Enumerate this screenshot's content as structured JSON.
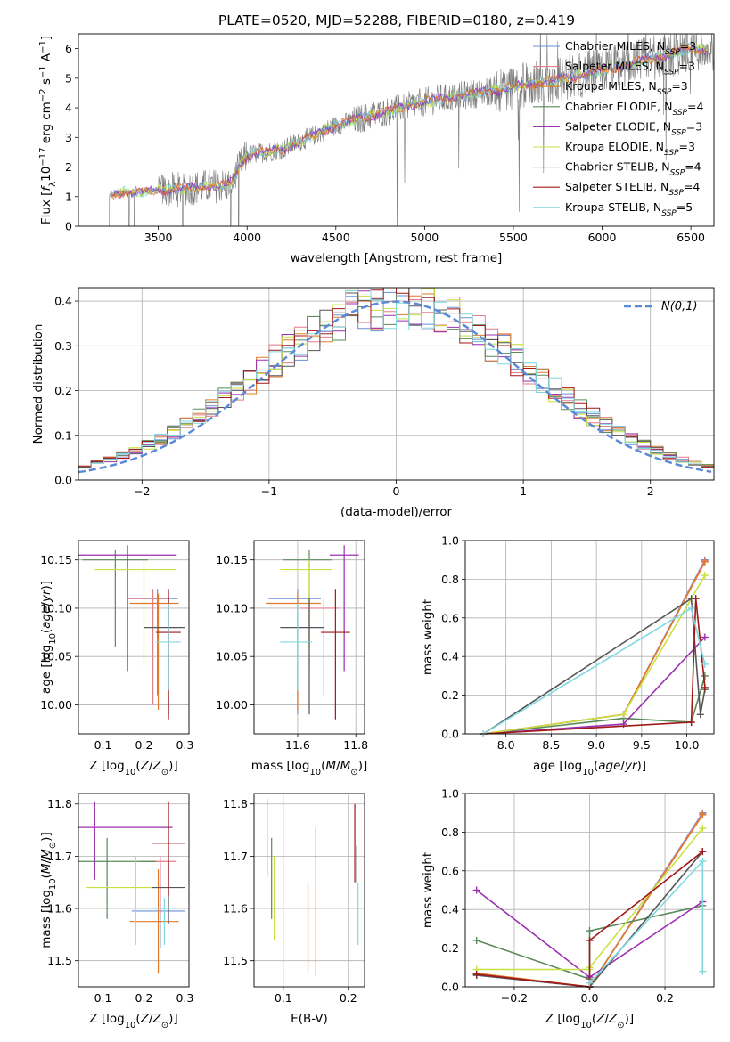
{
  "figure": {
    "title": "PLATE=0520, MJD=52288, FIBERID=0180, z=0.419"
  },
  "colors": {
    "chabrier_miles": "#6b8fd6",
    "salpeter_miles": "#e47c8c",
    "kroupa_miles": "#e07a2a",
    "chabrier_elodie": "#5a8a5a",
    "salpeter_elodie": "#9b30b0",
    "kroupa_elodie": "#c8e040",
    "chabrier_stelib": "#555555",
    "salpeter_stelib": "#a01818",
    "kroupa_stelib": "#7fd8e0",
    "normal_curve": "#5b8ad8",
    "grid": "#b0b0b0"
  },
  "legend_labels": [
    {
      "prefix": "Chabrier MILES, N",
      "sub": "SSP",
      "suffix": "=3",
      "color": "chabrier_miles"
    },
    {
      "prefix": "Salpeter MILES, N",
      "sub": "SSP",
      "suffix": "=3",
      "color": "salpeter_miles"
    },
    {
      "prefix": "Kroupa MILES, N",
      "sub": "SSP",
      "suffix": "=3",
      "color": "kroupa_miles"
    },
    {
      "prefix": "Chabrier ELODIE, N",
      "sub": "SSP",
      "suffix": "=4",
      "color": "chabrier_elodie"
    },
    {
      "prefix": "Salpeter ELODIE, N",
      "sub": "SSP",
      "suffix": "=3",
      "color": "salpeter_elodie"
    },
    {
      "prefix": "Kroupa ELODIE, N",
      "sub": "SSP",
      "suffix": "=3",
      "color": "kroupa_elodie"
    },
    {
      "prefix": "Chabrier STELIB, N",
      "sub": "SSP",
      "suffix": "=4",
      "color": "chabrier_stelib"
    },
    {
      "prefix": "Salpeter STELIB, N",
      "sub": "SSP",
      "suffix": "=4",
      "color": "salpeter_stelib"
    },
    {
      "prefix": "Kroupa STELIB, N",
      "sub": "SSP",
      "suffix": "=5",
      "color": "kroupa_stelib"
    }
  ],
  "chart_data": [
    {
      "id": "spectrum",
      "type": "line",
      "xlabel": "wavelength [Angstrom, rest frame]",
      "ylabel": "Flux [f_λ 10^-17 erg cm^-2 s^-1 A^-1]",
      "xlim": [
        3050,
        6630
      ],
      "ylim": [
        0,
        6.5
      ],
      "xticks": [
        3500,
        4000,
        4500,
        5000,
        5500,
        6000,
        6500
      ],
      "yticks": [
        0,
        1,
        2,
        3,
        4,
        5,
        6
      ],
      "continuum_x": [
        3220,
        3300,
        3500,
        3700,
        3900,
        4000,
        4200,
        4500,
        4800,
        5000,
        5200,
        5500,
        5800,
        6100,
        6500
      ],
      "continuum_y": [
        1.0,
        1.15,
        1.2,
        1.3,
        1.4,
        2.4,
        2.6,
        3.4,
        3.9,
        4.2,
        4.4,
        4.7,
        5.0,
        5.4,
        6.0
      ],
      "grid": false
    },
    {
      "id": "residuals",
      "type": "bar",
      "xlabel": "(data-model)/error",
      "ylabel": "Normed distribution",
      "xlim": [
        -2.5,
        2.5
      ],
      "ylim": [
        0,
        0.43
      ],
      "xticks": [
        -2,
        -1,
        0,
        1,
        2
      ],
      "yticks": [
        0.0,
        0.1,
        0.2,
        0.3,
        0.4
      ],
      "bin_width": 0.1,
      "normal_label": "N(0,1)",
      "grid": true
    },
    {
      "id": "age_vs_z",
      "type": "scatter",
      "xlabel": "Z [log10(Z/Z⊙)]",
      "ylabel": "age  [log10(age/yr)]",
      "xlim": [
        0.04,
        0.31
      ],
      "ylim": [
        9.97,
        10.17
      ],
      "xticks": [
        0.1,
        0.2,
        0.3
      ],
      "yticks": [
        10.0,
        10.05,
        10.1,
        10.15
      ],
      "points": [
        {
          "c": "chabrier_miles",
          "x": 0.233,
          "y": 10.11,
          "xerr": [
            0.07,
            0.05
          ],
          "yerr": [
            0.1,
            0.01
          ]
        },
        {
          "c": "salpeter_miles",
          "x": 0.222,
          "y": 10.11,
          "xerr": [
            0.06,
            0.04
          ],
          "yerr": [
            0.11,
            0.01
          ]
        },
        {
          "c": "kroupa_miles",
          "x": 0.235,
          "y": 10.105,
          "xerr": [
            0.07,
            0.05
          ],
          "yerr": [
            0.11,
            0.01
          ]
        },
        {
          "c": "chabrier_elodie",
          "x": 0.13,
          "y": 10.15,
          "xerr": [
            0.08,
            0.08
          ],
          "yerr": [
            0.09,
            0.01
          ]
        },
        {
          "c": "salpeter_elodie",
          "x": 0.16,
          "y": 10.155,
          "xerr": [
            0.13,
            0.12
          ],
          "yerr": [
            0.12,
            0.01
          ]
        },
        {
          "c": "kroupa_elodie",
          "x": 0.2,
          "y": 10.14,
          "xerr": [
            0.12,
            0.08
          ],
          "yerr": [
            0.1,
            0.01
          ]
        },
        {
          "c": "chabrier_stelib",
          "x": 0.26,
          "y": 10.08,
          "xerr": [
            0.06,
            0.04
          ],
          "yerr": [
            0.09,
            0.03
          ]
        },
        {
          "c": "salpeter_stelib",
          "x": 0.26,
          "y": 10.075,
          "xerr": [
            0.03,
            0.03
          ],
          "yerr": [
            0.09,
            0.045
          ]
        },
        {
          "c": "kroupa_stelib",
          "x": 0.26,
          "y": 10.065,
          "xerr": [
            0.03,
            0.03
          ],
          "yerr": [
            0.05,
            0.04
          ]
        }
      ]
    },
    {
      "id": "age_vs_mass",
      "type": "scatter",
      "xlabel": "mass [log10(M/M⊙)]",
      "ylabel": "",
      "xlim": [
        11.45,
        11.83
      ],
      "ylim": [
        9.97,
        10.17
      ],
      "xticks": [
        11.6,
        11.8
      ],
      "yticks": [
        10.0,
        10.05,
        10.1,
        10.15
      ],
      "points": [
        {
          "c": "chabrier_miles",
          "x": 11.6,
          "y": 10.11,
          "xerr": [
            0.1,
            0.08
          ],
          "yerr": [
            0.12,
            0.01
          ]
        },
        {
          "c": "salpeter_miles",
          "x": 11.69,
          "y": 10.1,
          "xerr": [
            0.08,
            0.05
          ],
          "yerr": [
            0.09,
            0.01
          ]
        },
        {
          "c": "kroupa_miles",
          "x": 11.6,
          "y": 10.105,
          "xerr": [
            0.11,
            0.08
          ],
          "yerr": [
            0.11,
            0.01
          ]
        },
        {
          "c": "chabrier_elodie",
          "x": 11.64,
          "y": 10.15,
          "xerr": [
            0.09,
            0.08
          ],
          "yerr": [
            0.09,
            0.01
          ]
        },
        {
          "c": "salpeter_elodie",
          "x": 11.76,
          "y": 10.155,
          "xerr": [
            0.05,
            0.05
          ],
          "yerr": [
            0.12,
            0.01
          ]
        },
        {
          "c": "kroupa_elodie",
          "x": 11.64,
          "y": 10.14,
          "xerr": [
            0.1,
            0.08
          ],
          "yerr": [
            0.1,
            0.01
          ]
        },
        {
          "c": "chabrier_stelib",
          "x": 11.64,
          "y": 10.08,
          "xerr": [
            0.1,
            0.05
          ],
          "yerr": [
            0.09,
            0.03
          ]
        },
        {
          "c": "salpeter_stelib",
          "x": 11.73,
          "y": 10.075,
          "xerr": [
            0.05,
            0.05
          ],
          "yerr": [
            0.09,
            0.045
          ]
        },
        {
          "c": "kroupa_stelib",
          "x": 11.6,
          "y": 10.065,
          "xerr": [
            0.06,
            0.05
          ],
          "yerr": [
            0.05,
            0.04
          ]
        }
      ]
    },
    {
      "id": "weight_vs_age",
      "type": "line",
      "xlabel": "age  [log10(age/yr)]",
      "ylabel": "mass weight",
      "xlim": [
        7.55,
        10.3
      ],
      "ylim": [
        0,
        1
      ],
      "xticks": [
        8.0,
        8.5,
        9.0,
        9.5,
        10.0
      ],
      "yticks": [
        0.0,
        0.2,
        0.4,
        0.6,
        0.8,
        1.0
      ],
      "series": [
        {
          "c": "chabrier_miles",
          "x": [
            7.75,
            9.3,
            10.2
          ],
          "y": [
            0.0,
            0.1,
            0.9
          ]
        },
        {
          "c": "salpeter_miles",
          "x": [
            7.75,
            9.3,
            10.2
          ],
          "y": [
            0.0,
            0.1,
            0.895
          ]
        },
        {
          "c": "kroupa_miles",
          "x": [
            7.75,
            9.3,
            10.2
          ],
          "y": [
            0.0,
            0.1,
            0.89
          ]
        },
        {
          "c": "chabrier_elodie",
          "x": [
            7.75,
            9.3,
            10.05,
            10.2
          ],
          "y": [
            0.0,
            0.08,
            0.06,
            0.3
          ]
        },
        {
          "c": "salpeter_elodie",
          "x": [
            7.75,
            9.3,
            10.2
          ],
          "y": [
            0.0,
            0.05,
            0.5
          ]
        },
        {
          "c": "kroupa_elodie",
          "x": [
            7.75,
            9.3,
            10.2
          ],
          "y": [
            0.0,
            0.1,
            0.82
          ]
        },
        {
          "c": "chabrier_stelib",
          "x": [
            7.75,
            10.05,
            10.15,
            10.2
          ],
          "y": [
            0.0,
            0.7,
            0.1,
            0.23
          ]
        },
        {
          "c": "salpeter_stelib",
          "x": [
            7.75,
            10.05,
            10.1,
            10.2
          ],
          "y": [
            0.0,
            0.06,
            0.7,
            0.24
          ]
        },
        {
          "c": "kroupa_stelib",
          "x": [
            7.75,
            10.05,
            10.2
          ],
          "y": [
            0.0,
            0.65,
            0.36
          ]
        }
      ],
      "grid": true
    },
    {
      "id": "mass_vs_z",
      "type": "scatter",
      "xlabel": "Z [log10(Z/Z⊙)]",
      "ylabel": "mass [log10(M/M⊙)]",
      "xlim": [
        0.04,
        0.31
      ],
      "ylim": [
        11.45,
        11.82
      ],
      "xticks": [
        0.1,
        0.2,
        0.3
      ],
      "yticks": [
        11.5,
        11.6,
        11.7,
        11.8
      ],
      "points": [
        {
          "c": "chabrier_miles",
          "x": 0.24,
          "y": 11.595,
          "xerr": [
            0.07,
            0.06
          ],
          "yerr": [
            0.07,
            0.09
          ]
        },
        {
          "c": "salpeter_miles",
          "x": 0.24,
          "y": 11.69,
          "xerr": [
            0.05,
            0.04
          ],
          "yerr": [
            0.1,
            0.01
          ]
        },
        {
          "c": "kroupa_miles",
          "x": 0.235,
          "y": 11.575,
          "xerr": [
            0.07,
            0.05
          ],
          "yerr": [
            0.1,
            0.1
          ]
        },
        {
          "c": "chabrier_elodie",
          "x": 0.11,
          "y": 11.69,
          "xerr": [
            0.07,
            0.12
          ],
          "yerr": [
            0.11,
            0.045
          ]
        },
        {
          "c": "salpeter_elodie",
          "x": 0.08,
          "y": 11.755,
          "xerr": [
            0.04,
            0.19
          ],
          "yerr": [
            0.1,
            0.05
          ]
        },
        {
          "c": "kroupa_elodie",
          "x": 0.18,
          "y": 11.64,
          "xerr": [
            0.12,
            0.07
          ],
          "yerr": [
            0.11,
            0.06
          ]
        },
        {
          "c": "chabrier_stelib",
          "x": 0.26,
          "y": 11.64,
          "xerr": [
            0.04,
            0.04
          ],
          "yerr": [
            0.07,
            0.05
          ]
        },
        {
          "c": "salpeter_stelib",
          "x": 0.26,
          "y": 11.725,
          "xerr": [
            0.04,
            0.04
          ],
          "yerr": [
            0.1,
            0.08
          ]
        },
        {
          "c": "kroupa_stelib",
          "x": 0.25,
          "y": 11.6,
          "xerr": [
            0.03,
            0.03
          ],
          "yerr": [
            0.07,
            0.02
          ]
        }
      ]
    },
    {
      "id": "mass_vs_ebv",
      "type": "scatter",
      "xlabel": "E(B-V)",
      "ylabel": "",
      "xlim": [
        0.055,
        0.225
      ],
      "ylim": [
        11.45,
        11.82
      ],
      "xticks": [
        0.1,
        0.2
      ],
      "yticks": [
        11.5,
        11.6,
        11.7,
        11.8
      ],
      "points": [
        {
          "c": "salpeter_elodie",
          "x": 0.075,
          "y": 11.73,
          "yerr": [
            0.07,
            0.08
          ]
        },
        {
          "c": "chabrier_elodie",
          "x": 0.082,
          "y": 11.655,
          "yerr": [
            0.075,
            0.08
          ]
        },
        {
          "c": "kroupa_elodie",
          "x": 0.086,
          "y": 11.61,
          "yerr": [
            0.07,
            0.09
          ]
        },
        {
          "c": "kroupa_miles",
          "x": 0.138,
          "y": 11.56,
          "yerr": [
            0.08,
            0.09
          ]
        },
        {
          "c": "salpeter_miles",
          "x": 0.15,
          "y": 11.64,
          "yerr": [
            0.17,
            0.115
          ]
        },
        {
          "c": "salpeter_stelib",
          "x": 0.21,
          "y": 11.72,
          "yerr": [
            0.07,
            0.08
          ]
        },
        {
          "c": "chabrier_stelib",
          "x": 0.213,
          "y": 11.68,
          "yerr": [
            0.03,
            0.04
          ]
        },
        {
          "c": "kroupa_stelib",
          "x": 0.215,
          "y": 11.6,
          "yerr": [
            0.07,
            0.05
          ]
        }
      ]
    },
    {
      "id": "weight_vs_z",
      "type": "line",
      "xlabel": "Z [log10(Z/Z⊙)]",
      "ylabel": "mass weight",
      "xlim": [
        -0.33,
        0.33
      ],
      "ylim": [
        0,
        1
      ],
      "xticks": [
        -0.2,
        0.0,
        0.2
      ],
      "yticks": [
        0.0,
        0.2,
        0.4,
        0.6,
        0.8,
        1.0
      ],
      "series": [
        {
          "c": "chabrier_miles",
          "x": [
            -0.3,
            0.0,
            0.3
          ],
          "y": [
            0.06,
            0.0,
            0.9
          ]
        },
        {
          "c": "salpeter_miles",
          "x": [
            -0.3,
            0.0,
            0.3
          ],
          "y": [
            0.065,
            0.0,
            0.895
          ]
        },
        {
          "c": "kroupa_miles",
          "x": [
            -0.3,
            0.0,
            0.3
          ],
          "y": [
            0.07,
            0.0,
            0.89
          ]
        },
        {
          "c": "chabrier_elodie",
          "x": [
            -0.3,
            0.0,
            0.0,
            0.3
          ],
          "y": [
            0.24,
            0.04,
            0.29,
            0.42
          ]
        },
        {
          "c": "salpeter_elodie",
          "x": [
            -0.3,
            0.0,
            0.3
          ],
          "y": [
            0.5,
            0.05,
            0.44
          ]
        },
        {
          "c": "kroupa_elodie",
          "x": [
            -0.3,
            0.0,
            0.0,
            0.3
          ],
          "y": [
            0.09,
            0.09,
            0.1,
            0.82
          ]
        },
        {
          "c": "chabrier_stelib",
          "x": [
            -0.3,
            0.0,
            0.3
          ],
          "y": [
            0.06,
            0.0,
            0.7
          ]
        },
        {
          "c": "salpeter_stelib",
          "x": [
            -0.3,
            0.0,
            0.0,
            0.3
          ],
          "y": [
            0.065,
            0.0,
            0.24,
            0.7
          ]
        },
        {
          "c": "kroupa_stelib",
          "x": [
            0.0,
            0.3,
            0.3
          ],
          "y": [
            0.02,
            0.65,
            0.08
          ]
        }
      ],
      "grid": true
    }
  ]
}
